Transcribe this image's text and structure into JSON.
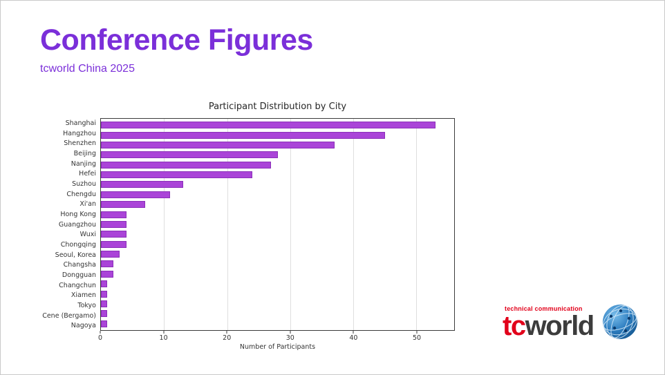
{
  "slide": {
    "title": "Conference Figures",
    "subtitle": "tcworld China 2025"
  },
  "chart_data": {
    "type": "bar",
    "orientation": "horizontal",
    "title": "Participant Distribution by City",
    "xlabel": "Number of Participants",
    "categories": [
      "Shanghai",
      "Hangzhou",
      "Shenzhen",
      "Beijing",
      "Nanjing",
      "Hefei",
      "Suzhou",
      "Chengdu",
      "Xi'an",
      "Hong Kong",
      "Guangzhou",
      "Wuxi",
      "Chongqing",
      "Seoul, Korea",
      "Changsha",
      "Dongguan",
      "Changchun",
      "Xiamen",
      "Tokyo",
      "Cene (Bergamo)",
      "Nagoya"
    ],
    "values": [
      53,
      45,
      37,
      28,
      27,
      24,
      13,
      11,
      7,
      4,
      4,
      4,
      4,
      3,
      2,
      2,
      1,
      1,
      1,
      1,
      1
    ],
    "xlim": [
      0,
      56
    ],
    "xticks": [
      0,
      10,
      20,
      30,
      40,
      50
    ],
    "grid": true,
    "legend": "none",
    "bar_color": "#aa44d8",
    "bar_edge_color": "#8a2fb8"
  },
  "logo": {
    "tagline": "technical communication",
    "brand_tc": "tc",
    "brand_world": "world",
    "colors": {
      "red": "#e2001a",
      "dark": "#3c3c3c",
      "globe_blue": "#2f7fc1"
    }
  }
}
